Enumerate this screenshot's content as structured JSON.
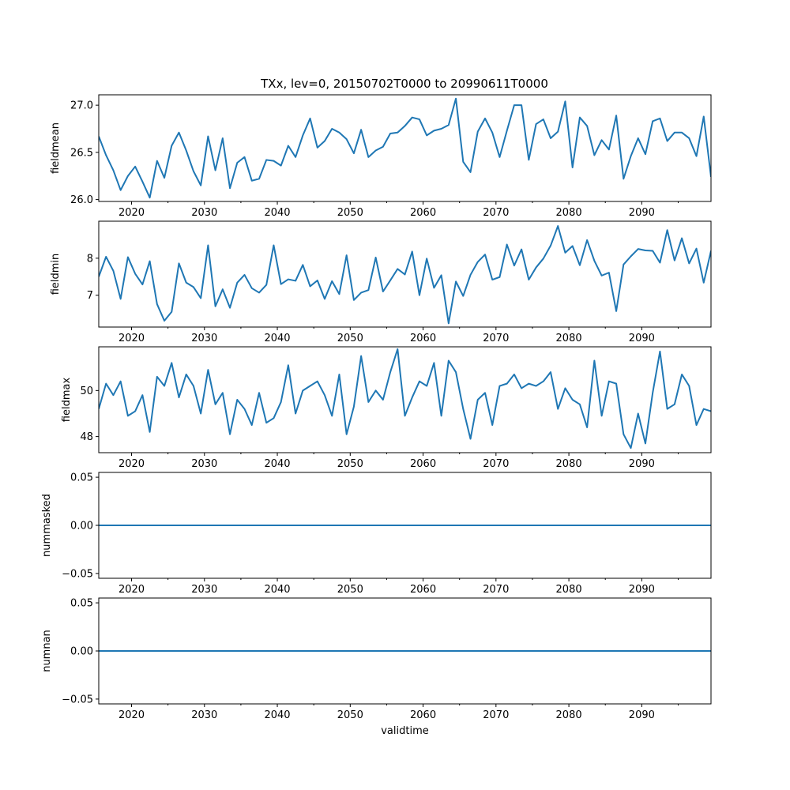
{
  "chart_data": [
    {
      "type": "line",
      "title": "TXx, lev=0, 20150702T0000 to 20990611T0000",
      "ylabel": "fieldmean",
      "xlabel": "",
      "xlim": [
        2015.5,
        2099.5
      ],
      "ylim": [
        25.98,
        27.11
      ],
      "yticks": [
        26.0,
        26.5,
        27.0
      ],
      "ytick_labels": [
        "26.0",
        "26.5",
        "27.0"
      ],
      "color": "#1f77b4",
      "x": [
        2015.5,
        2016.5,
        2017.5,
        2018.5,
        2019.5,
        2020.5,
        2021.5,
        2022.5,
        2023.5,
        2024.5,
        2025.5,
        2026.5,
        2027.5,
        2028.5,
        2029.5,
        2030.5,
        2031.5,
        2032.5,
        2033.5,
        2034.5,
        2035.5,
        2036.5,
        2037.5,
        2038.5,
        2039.5,
        2040.5,
        2041.5,
        2042.5,
        2043.5,
        2044.5,
        2045.5,
        2046.5,
        2047.5,
        2048.5,
        2049.5,
        2050.5,
        2051.5,
        2052.5,
        2053.5,
        2054.5,
        2055.5,
        2056.5,
        2057.5,
        2058.5,
        2059.5,
        2060.5,
        2061.5,
        2062.5,
        2063.5,
        2064.5,
        2065.5,
        2066.5,
        2067.5,
        2068.5,
        2069.5,
        2070.5,
        2071.5,
        2072.5,
        2073.5,
        2074.5,
        2075.5,
        2076.5,
        2077.5,
        2078.5,
        2079.5,
        2080.5,
        2081.5,
        2082.5,
        2083.5,
        2084.5,
        2085.5,
        2086.5,
        2087.5,
        2088.5,
        2089.5,
        2090.5,
        2091.5,
        2092.5,
        2093.5,
        2094.5,
        2095.5,
        2096.5,
        2097.5,
        2098.5,
        2099.5
      ],
      "values": [
        26.67,
        26.47,
        26.31,
        26.1,
        26.25,
        26.35,
        26.19,
        26.02,
        26.41,
        26.23,
        26.57,
        26.71,
        26.52,
        26.3,
        26.15,
        26.67,
        26.31,
        26.65,
        26.12,
        26.39,
        26.45,
        26.2,
        26.22,
        26.42,
        26.41,
        26.36,
        26.57,
        26.45,
        26.68,
        26.86,
        26.55,
        26.62,
        26.75,
        26.71,
        26.64,
        26.49,
        26.74,
        26.45,
        26.52,
        26.56,
        26.7,
        26.71,
        26.78,
        26.87,
        26.85,
        26.68,
        26.73,
        26.75,
        26.79,
        27.07,
        26.4,
        26.29,
        26.72,
        26.86,
        26.71,
        26.45,
        26.73,
        27.0,
        27.0,
        26.42,
        26.8,
        26.85,
        26.65,
        26.72,
        27.04,
        26.34,
        26.87,
        26.78,
        26.47,
        26.63,
        26.53,
        26.89,
        26.22,
        26.46,
        26.65,
        26.48,
        26.83,
        26.86,
        26.62,
        26.71,
        26.71,
        26.65,
        26.46,
        26.88,
        26.24
      ]
    },
    {
      "type": "line",
      "ylabel": "fieldmin",
      "xlabel": "",
      "xlim": [
        2015.5,
        2099.5
      ],
      "ylim": [
        6.14,
        9.0
      ],
      "yticks": [
        7,
        8
      ],
      "ytick_labels": [
        "7",
        "8"
      ],
      "color": "#1f77b4",
      "x": [
        2015.5,
        2016.5,
        2017.5,
        2018.5,
        2019.5,
        2020.5,
        2021.5,
        2022.5,
        2023.5,
        2024.5,
        2025.5,
        2026.5,
        2027.5,
        2028.5,
        2029.5,
        2030.5,
        2031.5,
        2032.5,
        2033.5,
        2034.5,
        2035.5,
        2036.5,
        2037.5,
        2038.5,
        2039.5,
        2040.5,
        2041.5,
        2042.5,
        2043.5,
        2044.5,
        2045.5,
        2046.5,
        2047.5,
        2048.5,
        2049.5,
        2050.5,
        2051.5,
        2052.5,
        2053.5,
        2054.5,
        2055.5,
        2056.5,
        2057.5,
        2058.5,
        2059.5,
        2060.5,
        2061.5,
        2062.5,
        2063.5,
        2064.5,
        2065.5,
        2066.5,
        2067.5,
        2068.5,
        2069.5,
        2070.5,
        2071.5,
        2072.5,
        2073.5,
        2074.5,
        2075.5,
        2076.5,
        2077.5,
        2078.5,
        2079.5,
        2080.5,
        2081.5,
        2082.5,
        2083.5,
        2084.5,
        2085.5,
        2086.5,
        2087.5,
        2088.5,
        2089.5,
        2090.5,
        2091.5,
        2092.5,
        2093.5,
        2094.5,
        2095.5,
        2096.5,
        2097.5,
        2098.5,
        2099.5
      ],
      "values": [
        7.5,
        8.04,
        7.66,
        6.9,
        8.03,
        7.58,
        7.29,
        7.92,
        6.76,
        6.31,
        6.55,
        7.86,
        7.34,
        7.22,
        6.92,
        8.35,
        6.7,
        7.16,
        6.66,
        7.34,
        7.55,
        7.19,
        7.07,
        7.28,
        8.35,
        7.3,
        7.43,
        7.39,
        7.82,
        7.24,
        7.4,
        6.9,
        7.38,
        7.03,
        8.08,
        6.87,
        7.07,
        7.14,
        8.02,
        7.1,
        7.4,
        7.71,
        7.56,
        8.18,
        7.0,
        7.99,
        7.2,
        7.54,
        6.24,
        7.37,
        6.98,
        7.55,
        7.9,
        8.1,
        7.42,
        7.49,
        8.37,
        7.8,
        8.24,
        7.42,
        7.75,
        7.99,
        8.34,
        8.87,
        8.15,
        8.33,
        7.81,
        8.49,
        7.93,
        7.53,
        7.61,
        6.57,
        7.83,
        8.05,
        8.25,
        8.21,
        8.2,
        7.88,
        8.76,
        7.94,
        8.54,
        7.86,
        8.26,
        7.34,
        8.2
      ]
    },
    {
      "type": "line",
      "ylabel": "fieldmax",
      "xlabel": "",
      "xlim": [
        2015.5,
        2099.5
      ],
      "ylim": [
        47.3,
        51.9
      ],
      "yticks": [
        48,
        50
      ],
      "ytick_labels": [
        "48",
        "50"
      ],
      "color": "#1f77b4",
      "x": [
        2015.5,
        2016.5,
        2017.5,
        2018.5,
        2019.5,
        2020.5,
        2021.5,
        2022.5,
        2023.5,
        2024.5,
        2025.5,
        2026.5,
        2027.5,
        2028.5,
        2029.5,
        2030.5,
        2031.5,
        2032.5,
        2033.5,
        2034.5,
        2035.5,
        2036.5,
        2037.5,
        2038.5,
        2039.5,
        2040.5,
        2041.5,
        2042.5,
        2043.5,
        2044.5,
        2045.5,
        2046.5,
        2047.5,
        2048.5,
        2049.5,
        2050.5,
        2051.5,
        2052.5,
        2053.5,
        2054.5,
        2055.5,
        2056.5,
        2057.5,
        2058.5,
        2059.5,
        2060.5,
        2061.5,
        2062.5,
        2063.5,
        2064.5,
        2065.5,
        2066.5,
        2067.5,
        2068.5,
        2069.5,
        2070.5,
        2071.5,
        2072.5,
        2073.5,
        2074.5,
        2075.5,
        2076.5,
        2077.5,
        2078.5,
        2079.5,
        2080.5,
        2081.5,
        2082.5,
        2083.5,
        2084.5,
        2085.5,
        2086.5,
        2087.5,
        2088.5,
        2089.5,
        2090.5,
        2091.5,
        2092.5,
        2093.5,
        2094.5,
        2095.5,
        2096.5,
        2097.5,
        2098.5,
        2099.5
      ],
      "values": [
        49.2,
        50.3,
        49.8,
        50.4,
        48.9,
        49.1,
        49.8,
        48.2,
        50.6,
        50.2,
        51.2,
        49.7,
        50.7,
        50.2,
        49.0,
        50.9,
        49.4,
        49.9,
        48.1,
        49.6,
        49.2,
        48.5,
        49.9,
        48.6,
        48.8,
        49.5,
        51.1,
        49.0,
        50.0,
        50.2,
        50.4,
        49.8,
        48.9,
        50.7,
        48.1,
        49.3,
        51.5,
        49.5,
        50.0,
        49.6,
        50.8,
        51.8,
        48.9,
        49.7,
        50.4,
        50.2,
        51.2,
        48.9,
        51.3,
        50.8,
        49.2,
        47.9,
        49.6,
        49.9,
        48.5,
        50.2,
        50.3,
        50.7,
        50.1,
        50.3,
        50.2,
        50.4,
        50.8,
        49.2,
        50.1,
        49.6,
        49.4,
        48.4,
        51.3,
        48.9,
        50.4,
        50.3,
        48.1,
        47.5,
        49.0,
        47.7,
        49.9,
        51.7,
        49.2,
        49.4,
        50.7,
        50.2,
        48.5,
        49.2,
        49.1
      ]
    },
    {
      "type": "line",
      "ylabel": "nummasked",
      "xlabel": "",
      "xlim": [
        2015.5,
        2099.5
      ],
      "ylim": [
        -0.055,
        0.055
      ],
      "yticks": [
        -0.05,
        0.0,
        0.05
      ],
      "ytick_labels": [
        "−0.05",
        "0.00",
        "0.05"
      ],
      "color": "#1f77b4",
      "x": [
        2015.5,
        2099.5
      ],
      "values": [
        0,
        0
      ]
    },
    {
      "type": "line",
      "ylabel": "numnan",
      "xlabel": "validtime",
      "xlim": [
        2015.5,
        2099.5
      ],
      "ylim": [
        -0.055,
        0.055
      ],
      "yticks": [
        -0.05,
        0.0,
        0.05
      ],
      "ytick_labels": [
        "−0.05",
        "0.00",
        "0.05"
      ],
      "color": "#1f77b4",
      "x": [
        2015.5,
        2099.5
      ],
      "values": [
        0,
        0
      ]
    }
  ],
  "x_axis": {
    "major_ticks": [
      2020,
      2030,
      2040,
      2050,
      2060,
      2070,
      2080,
      2090
    ],
    "major_labels": [
      "2020",
      "2030",
      "2040",
      "2050",
      "2060",
      "2070",
      "2080",
      "2090"
    ],
    "minor_ticks": [
      2025,
      2035,
      2045,
      2055,
      2065,
      2075,
      2085,
      2095
    ]
  }
}
